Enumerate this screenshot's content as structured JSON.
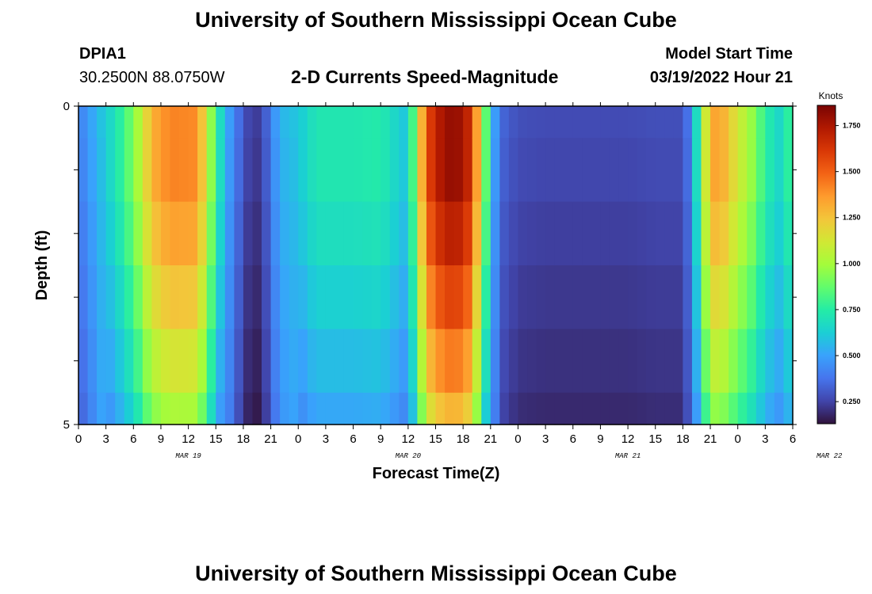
{
  "header": {
    "title": "University of Southern Mississippi Ocean Cube",
    "station_id": "DPIA1",
    "station_coords": "30.2500N  88.0750W",
    "model_start_label": "Model Start Time",
    "model_start_value": "03/19/2022 Hour 21",
    "footer_title": "University of Southern Mississippi Ocean Cube"
  },
  "colors": {
    "colormap": [
      "#30123b",
      "#4145ab",
      "#4675ed",
      "#39a2fc",
      "#1bcfd4",
      "#24eca6",
      "#61fc6c",
      "#a4fc3b",
      "#d1e834",
      "#f3c63a",
      "#fe9b2d",
      "#f36315",
      "#d93806",
      "#b11901",
      "#7a0403"
    ]
  },
  "chart_data": {
    "type": "heatmap",
    "title": "2-D Currents Speed-Magnitude",
    "xlabel": "Forecast Time(Z)",
    "ylabel": "Depth (ft)",
    "x_start_hour": 0,
    "x_step_hours": 1,
    "x_ticks": [
      "0",
      "3",
      "6",
      "9",
      "12",
      "15",
      "18",
      "21",
      "0",
      "3",
      "6",
      "9",
      "12",
      "15",
      "18",
      "21",
      "0",
      "3",
      "6",
      "9",
      "12",
      "15",
      "18",
      "21",
      "0",
      "3",
      "6"
    ],
    "date_labels": [
      "MAR 19",
      "MAR 20",
      "MAR 21",
      "MAR 22"
    ],
    "y_ticks": [
      "0",
      "5"
    ],
    "ylim": [
      0,
      5
    ],
    "depth_layers_ft": [
      0,
      1,
      2,
      3,
      4,
      5
    ],
    "colorbar": {
      "label": "Knots",
      "min": 0.13,
      "max": 1.86,
      "ticks": [
        "0.250",
        "0.500",
        "0.750",
        "1.000",
        "1.250",
        "1.500",
        "1.750"
      ],
      "tick_values": [
        0.25,
        0.5,
        0.75,
        1.0,
        1.25,
        1.5,
        1.75
      ]
    },
    "speed_keyframes": {
      "hours": [
        0,
        2,
        4,
        6,
        7,
        8,
        10,
        13,
        14,
        15,
        16,
        18,
        19,
        20,
        21,
        22,
        24,
        26,
        30,
        33,
        36,
        37,
        38,
        40,
        42,
        43,
        44,
        45,
        46,
        48,
        51,
        54,
        57,
        60,
        63,
        66,
        67,
        68,
        69,
        70,
        72,
        74,
        75,
        76,
        77,
        78
      ],
      "speed_knots": [
        0.4,
        0.55,
        0.7,
        0.92,
        1.1,
        1.3,
        1.42,
        1.4,
        1.1,
        0.8,
        0.55,
        0.3,
        0.22,
        0.25,
        0.4,
        0.55,
        0.6,
        0.72,
        0.72,
        0.74,
        0.58,
        1.05,
        1.55,
        1.8,
        1.78,
        1.6,
        1.1,
        0.62,
        0.35,
        0.28,
        0.27,
        0.27,
        0.27,
        0.27,
        0.28,
        0.28,
        0.45,
        0.9,
        1.32,
        1.35,
        1.12,
        0.92,
        0.75,
        0.7,
        0.62,
        0.9
      ]
    },
    "depth_factor": [
      1.0,
      1.0,
      0.95,
      0.88,
      0.8,
      0.72
    ],
    "trough_depth_factor": [
      1.0,
      0.9,
      0.75,
      0.6,
      0.45,
      0.3
    ]
  }
}
